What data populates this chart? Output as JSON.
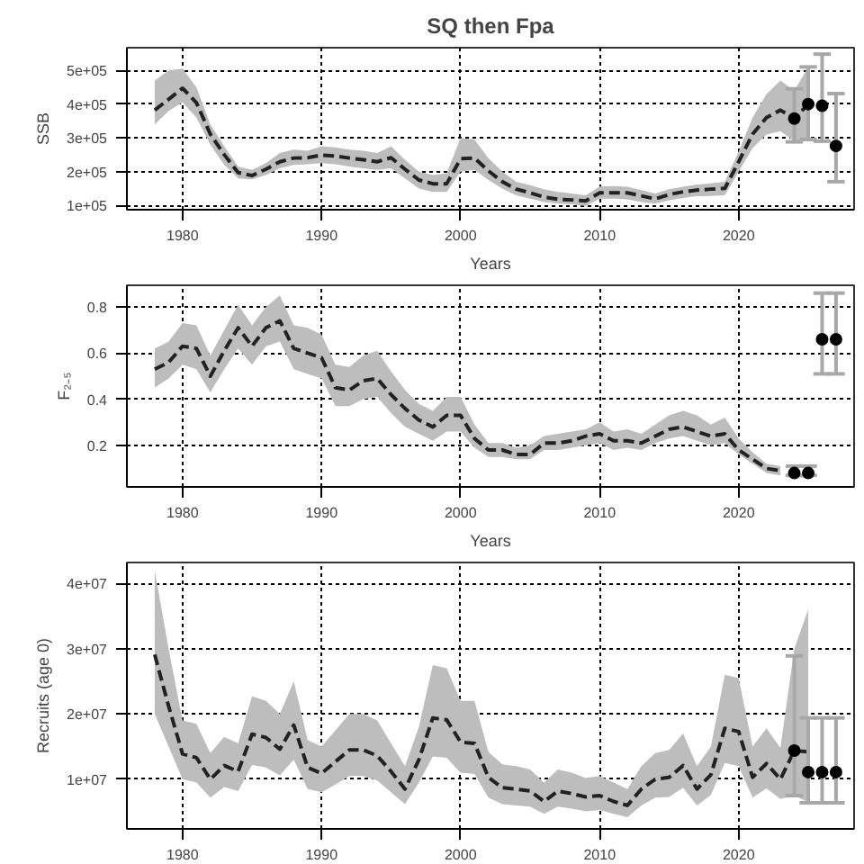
{
  "chart_data": [
    {
      "type": "line",
      "title": "SQ then Fpa",
      "xlabel": "Years",
      "ylabel": "SSB",
      "xlim": [
        1976,
        2028.3
      ],
      "xticks": [
        1980,
        1990,
        2000,
        2010,
        2020
      ],
      "ylim": [
        87000,
        567000
      ],
      "yticks": [
        {
          "value": 100000,
          "label": "1e+05"
        },
        {
          "value": 200000,
          "label": "2e+05"
        },
        {
          "value": 300000,
          "label": "3e+05"
        },
        {
          "value": 400000,
          "label": "4e+05"
        },
        {
          "value": 500000,
          "label": "5e+05"
        }
      ],
      "grid": true,
      "x": [
        1978,
        1979,
        1980,
        1981,
        1982,
        1983,
        1984,
        1985,
        1986,
        1987,
        1988,
        1989,
        1990,
        1991,
        1992,
        1993,
        1994,
        1995,
        1996,
        1997,
        1998,
        1999,
        2000,
        2001,
        2002,
        2003,
        2004,
        2005,
        2006,
        2007,
        2008,
        2009,
        2010,
        2011,
        2012,
        2013,
        2014,
        2015,
        2016,
        2017,
        2018,
        2019,
        2020,
        2021,
        2022,
        2023,
        2024,
        2025
      ],
      "series": [
        {
          "color": "#222222",
          "line_style": "dashed",
          "marker": "none",
          "values": [
            382000,
            414000,
            447000,
            404000,
            311000,
            250000,
            197000,
            188000,
            207000,
            229000,
            240000,
            241000,
            249000,
            246000,
            240000,
            235000,
            229000,
            241000,
            207000,
            175000,
            164000,
            164000,
            238000,
            240000,
            202000,
            170000,
            148000,
            137000,
            124000,
            118000,
            116000,
            113000,
            137000,
            137000,
            137000,
            128000,
            119000,
            132000,
            140000,
            145000,
            148000,
            150000,
            229000,
            311000,
            360000,
            382000,
            357000,
            400000
          ],
          "lower": [
            340000,
            380000,
            405000,
            360000,
            280000,
            220000,
            180000,
            177000,
            190000,
            210000,
            220000,
            222000,
            225000,
            222000,
            215000,
            210000,
            205000,
            210000,
            180000,
            150000,
            140000,
            140000,
            200000,
            205000,
            175000,
            150000,
            130000,
            120000,
            110000,
            105000,
            103000,
            98000,
            120000,
            120000,
            118000,
            110000,
            105000,
            115000,
            122000,
            127000,
            128000,
            130000,
            200000,
            270000,
            310000,
            320000,
            290000,
            290000
          ],
          "upper": [
            470000,
            500000,
            505000,
            450000,
            340000,
            275000,
            215000,
            205000,
            225000,
            255000,
            265000,
            262000,
            275000,
            272000,
            265000,
            262000,
            255000,
            275000,
            235000,
            200000,
            190000,
            195000,
            300000,
            295000,
            240000,
            200000,
            170000,
            160000,
            148000,
            140000,
            135000,
            130000,
            156000,
            157000,
            155000,
            145000,
            135000,
            148000,
            155000,
            162000,
            165000,
            170000,
            260000,
            360000,
            430000,
            470000,
            440000,
            510000
          ]
        },
        {
          "type": "scatter",
          "color": "#000000",
          "marker": "circle",
          "x": [
            2024,
            2025,
            2026,
            2027
          ],
          "values": [
            357000,
            400000,
            395000,
            276000
          ],
          "errors": [
            [
              288000,
              445000
            ],
            [
              295000,
              510000
            ],
            [
              290000,
              548000
            ],
            [
              170000,
              431000
            ]
          ]
        }
      ]
    },
    {
      "type": "line",
      "xlabel": "Years",
      "ylabel": "F₂₋₅",
      "xlim": [
        1976,
        2028.3
      ],
      "xticks": [
        1980,
        1990,
        2000,
        2010,
        2020
      ],
      "ylim": [
        0.02,
        0.894
      ],
      "yticks": [
        0.2,
        0.4,
        0.6,
        0.8
      ],
      "grid": true,
      "x": [
        1978,
        1979,
        1980,
        1981,
        1982,
        1983,
        1984,
        1985,
        1986,
        1987,
        1988,
        1989,
        1990,
        1991,
        1992,
        1993,
        1994,
        1995,
        1996,
        1997,
        1998,
        1999,
        2000,
        2001,
        2002,
        2003,
        2004,
        2005,
        2006,
        2007,
        2008,
        2009,
        2010,
        2011,
        2012,
        2013,
        2014,
        2015,
        2016,
        2017,
        2018,
        2019,
        2020,
        2021,
        2022,
        2023
      ],
      "series": [
        {
          "color": "#222222",
          "line_style": "dashed",
          "marker": "none",
          "values": [
            0.53,
            0.56,
            0.63,
            0.62,
            0.5,
            0.61,
            0.71,
            0.63,
            0.71,
            0.74,
            0.62,
            0.6,
            0.58,
            0.45,
            0.44,
            0.48,
            0.49,
            0.42,
            0.36,
            0.31,
            0.28,
            0.33,
            0.33,
            0.23,
            0.18,
            0.18,
            0.16,
            0.16,
            0.21,
            0.21,
            0.22,
            0.24,
            0.25,
            0.22,
            0.22,
            0.21,
            0.24,
            0.27,
            0.28,
            0.26,
            0.24,
            0.25,
            0.18,
            0.14,
            0.1,
            0.09
          ],
          "lower": [
            0.45,
            0.49,
            0.55,
            0.53,
            0.43,
            0.53,
            0.62,
            0.55,
            0.63,
            0.65,
            0.53,
            0.51,
            0.49,
            0.37,
            0.37,
            0.4,
            0.41,
            0.34,
            0.28,
            0.25,
            0.22,
            0.26,
            0.26,
            0.19,
            0.15,
            0.15,
            0.14,
            0.14,
            0.18,
            0.18,
            0.19,
            0.2,
            0.21,
            0.18,
            0.19,
            0.18,
            0.21,
            0.23,
            0.24,
            0.22,
            0.2,
            0.21,
            0.16,
            0.12,
            0.08,
            0.07
          ],
          "upper": [
            0.62,
            0.65,
            0.73,
            0.72,
            0.59,
            0.7,
            0.81,
            0.72,
            0.8,
            0.85,
            0.72,
            0.71,
            0.68,
            0.55,
            0.54,
            0.59,
            0.61,
            0.52,
            0.44,
            0.38,
            0.35,
            0.41,
            0.41,
            0.29,
            0.21,
            0.21,
            0.19,
            0.2,
            0.24,
            0.25,
            0.26,
            0.27,
            0.3,
            0.26,
            0.27,
            0.25,
            0.29,
            0.33,
            0.35,
            0.33,
            0.29,
            0.32,
            0.23,
            0.17,
            0.12,
            0.11
          ]
        },
        {
          "type": "scatter",
          "color": "#000000",
          "marker": "circle",
          "x": [
            2024,
            2025,
            2026,
            2027
          ],
          "values": [
            0.08,
            0.08,
            0.66,
            0.66
          ],
          "errors": [
            [
              0.07,
              0.11
            ],
            [
              0.07,
              0.11
            ],
            [
              0.51,
              0.86
            ],
            [
              0.51,
              0.86
            ]
          ]
        }
      ]
    },
    {
      "type": "line",
      "ylabel": "Recruits (age 0)",
      "xlim": [
        1976,
        2028.3
      ],
      "xticks": [
        1980,
        1990,
        2000,
        2010,
        2020
      ],
      "ylim": [
        2400000,
        43200000
      ],
      "yticks": [
        {
          "value": 10000000,
          "label": "1e+07"
        },
        {
          "value": 20000000,
          "label": "2e+07"
        },
        {
          "value": 30000000,
          "label": "3e+07"
        },
        {
          "value": 40000000,
          "label": "4e+07"
        }
      ],
      "grid": true,
      "x": [
        1978,
        1979,
        1980,
        1981,
        1982,
        1983,
        1984,
        1985,
        1986,
        1987,
        1988,
        1989,
        1990,
        1991,
        1992,
        1993,
        1994,
        1995,
        1996,
        1997,
        1998,
        1999,
        2000,
        2001,
        2002,
        2003,
        2004,
        2005,
        2006,
        2007,
        2008,
        2009,
        2010,
        2011,
        2012,
        2013,
        2014,
        2015,
        2016,
        2017,
        2018,
        2019,
        2020,
        2021,
        2022,
        2023,
        2024,
        2025
      ],
      "series": [
        {
          "color": "#222222",
          "line_style": "dashed",
          "marker": "none",
          "values": [
            29100000,
            21200000,
            13900000,
            13300000,
            10000000,
            12100000,
            11200000,
            16900000,
            16400000,
            14600000,
            18300000,
            11800000,
            10900000,
            12700000,
            14500000,
            14500000,
            13600000,
            11200000,
            8500000,
            13000000,
            19400000,
            19100000,
            15700000,
            15500000,
            10300000,
            8700000,
            8500000,
            8200000,
            6600000,
            8200000,
            7800000,
            7300000,
            7500000,
            6600000,
            6000000,
            8500000,
            10000000,
            10300000,
            12100000,
            8500000,
            10700000,
            17800000,
            17300000,
            10300000,
            12400000,
            10000000,
            14400000,
            14200000
          ],
          "lower": [
            20000000,
            15000000,
            10000000,
            9500000,
            7200000,
            8800000,
            8200000,
            12200000,
            11800000,
            10600000,
            13000000,
            8500000,
            8000000,
            9200000,
            10500000,
            10500000,
            9800000,
            8000000,
            6200000,
            9500000,
            13500000,
            13300000,
            11000000,
            10800000,
            7200000,
            6200000,
            6000000,
            5800000,
            4700000,
            5800000,
            5500000,
            5100000,
            5300000,
            4700000,
            4200000,
            6000000,
            7200000,
            7300000,
            8700000,
            6000000,
            7600000,
            12500000,
            12000000,
            7200000,
            8600000,
            7000000,
            7500000,
            6500000
          ],
          "upper": [
            42000000,
            30000000,
            19000000,
            18500000,
            14000000,
            16500000,
            15500000,
            22700000,
            22000000,
            20000000,
            25000000,
            16000000,
            15000000,
            17500000,
            20000000,
            20000000,
            19000000,
            15500000,
            12000000,
            18000000,
            27500000,
            27000000,
            22000000,
            22000000,
            14200000,
            12300000,
            12000000,
            11500000,
            9500000,
            11500000,
            11000000,
            10200000,
            10500000,
            9500000,
            8500000,
            12000000,
            14000000,
            14500000,
            17000000,
            12000000,
            15000000,
            26000000,
            25500000,
            15000000,
            17800000,
            14800000,
            30000000,
            36000000
          ]
        },
        {
          "type": "scatter",
          "color": "#000000",
          "marker": "circle",
          "x": [
            2024,
            2025,
            2026,
            2027
          ],
          "values": [
            14400000,
            11100000,
            11100000,
            11100000
          ],
          "errors": [
            [
              7500000,
              28900000
            ],
            [
              6400000,
              19400000
            ],
            [
              6400000,
              19400000
            ],
            [
              6400000,
              19400000
            ]
          ]
        }
      ]
    }
  ]
}
